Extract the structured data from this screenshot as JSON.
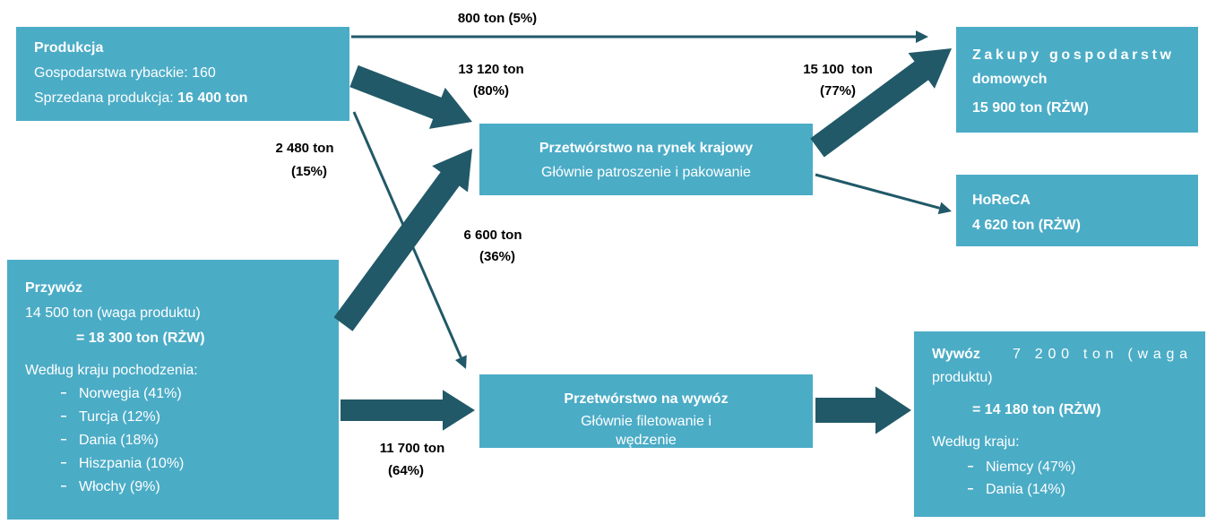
{
  "nodes": [
    {
      "title": "Produkcja",
      "lines": [
        "Gospodarstwa rybackie: 160"
      ],
      "mixed": {
        "text": "Sprzedana produkcja: ",
        "bold": "16 400 ton"
      }
    },
    {
      "title": "Przetwórstwo na rynek krajowy",
      "lines": [
        "Głównie patroszenie i pakowanie"
      ]
    },
    {
      "title": "Zakupy gospodarstw",
      "lines": [
        "domowych",
        "15 900 ton (RŻW)"
      ]
    },
    {
      "title": "HoReCA",
      "lines": [
        "4 620 ton (RŻW)"
      ]
    },
    {
      "title": "Przywóz",
      "lines": [
        "14 500 ton (waga produktu)",
        "= 18 300 ton (RŻW)",
        "Według kraju pochodzenia:"
      ],
      "items": [
        "Norwegia (41%)",
        "Turcja (12%)",
        "Dania (18%)",
        "Hiszpania (10%)",
        "Włochy (9%)"
      ]
    },
    {
      "title": "Przetwórstwo na wywóz",
      "lines": [
        "Głównie filetowanie i",
        "wędzenie"
      ]
    },
    {
      "title": "Wywóz",
      "lines": [
        "7 200 ton (waga",
        "produktu)",
        "= 14 180 ton (RŻW)",
        "Według kraju:"
      ],
      "items": [
        "Niemcy (47%)",
        "Dania (14%)"
      ]
    }
  ],
  "flows": [
    {
      "amount": "800 ton (5%)"
    },
    {
      "amount": "13 120 ton",
      "share": "(80%)"
    },
    {
      "amount": "15 100  ton",
      "share": "(77%)"
    },
    {
      "amount": "2 480 ton",
      "share": "(15%)"
    },
    {
      "amount": "6 600 ton",
      "share": "(36%)"
    },
    {
      "amount": "11 700 ton",
      "share": "(64%)"
    }
  ]
}
